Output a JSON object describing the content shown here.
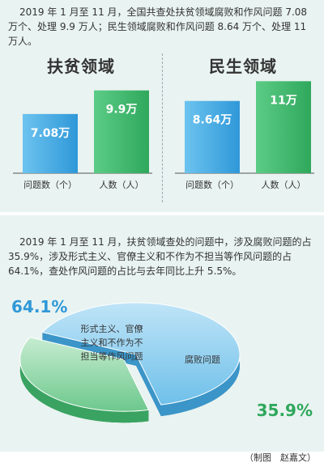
{
  "intro_text": "2019 年 1 月至 11 月，全国共查处扶贫领域腐败和作风问题 7.08 万个、处理 9.9 万人；民生领域腐败和作风问题 8.64 万个、处理 11 万人。",
  "chart_data": [
    {
      "type": "bar",
      "title": "扶贫领域",
      "categories": [
        "问题数（个）",
        "人数（人）"
      ],
      "values": [
        7.08,
        9.9
      ],
      "value_labels": [
        "7.08万",
        "9.9万"
      ],
      "colors": [
        "#3ea6e0",
        "#3cb56b"
      ],
      "ylim": [
        0,
        12
      ]
    },
    {
      "type": "bar",
      "title": "民生领域",
      "categories": [
        "问题数（个）",
        "人数（人）"
      ],
      "values": [
        8.64,
        11
      ],
      "value_labels": [
        "8.64万",
        "11万"
      ],
      "colors": [
        "#3ea6e0",
        "#3cb56b"
      ],
      "ylim": [
        0,
        12
      ]
    },
    {
      "type": "pie",
      "values": [
        64.1,
        35.9
      ],
      "labels": [
        "形式主义、官僚主义和不作为不担当等作风问题",
        "腐败问题"
      ],
      "value_labels": [
        "64.1%",
        "35.9%"
      ],
      "colors": [
        "#3ea6e0",
        "#3cb56b"
      ]
    }
  ],
  "pie_text": "2019 年 1 月至 11 月，扶贫领域查处的问题中，涉及腐败问题的占 35.9%，涉及形式主义、官僚主义和不作为不担当等作风问题的占 64.1%，查处作风问题的占比与去年同比上升 5.5%。",
  "credit": "（制图　赵嘉文）"
}
